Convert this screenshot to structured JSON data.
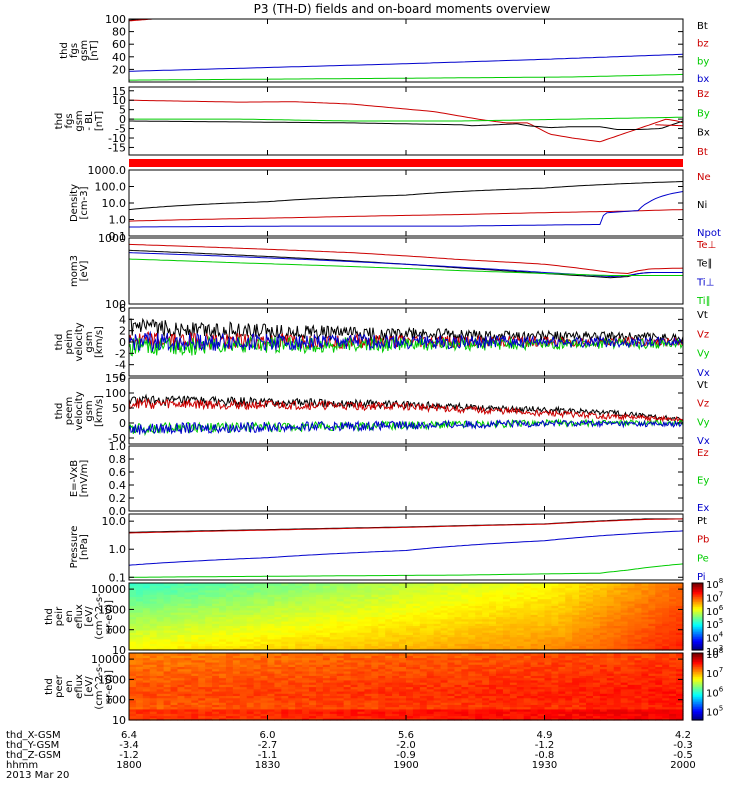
{
  "title": "P3 (TH-D) fields and on-board moments overview",
  "chart_data": [
    {
      "type": "line",
      "id": "fgs_mag",
      "ylabel": [
        "thd",
        "fgs",
        "gsm",
        "[nT]"
      ],
      "yticks": [
        "100",
        "80",
        "60",
        "40",
        "20"
      ],
      "ylim": [
        0,
        100
      ],
      "scale": "linear",
      "legend_placement": "right",
      "series": [
        {
          "name": "Bt",
          "color": "#000000",
          "x": [
            0,
            0.1
          ],
          "y": [
            98,
            105
          ]
        },
        {
          "name": "bz",
          "color": "#cc0000",
          "x": [
            0,
            0.1
          ],
          "y": [
            97,
            104
          ]
        },
        {
          "name": "by",
          "color": "#00cc00",
          "x": [
            0,
            0.5,
            0.8,
            1.0
          ],
          "y": [
            3,
            6,
            8,
            12
          ]
        },
        {
          "name": "bx",
          "color": "#0000cc",
          "x": [
            0,
            0.25,
            0.5,
            0.75,
            1.0
          ],
          "y": [
            17,
            23,
            29,
            36,
            44
          ]
        }
      ]
    },
    {
      "type": "line",
      "id": "fgs_comp",
      "ylabel": [
        "thd",
        "fgs",
        "gsm",
        "- BL",
        "[nT]"
      ],
      "yticks": [
        "15",
        "10",
        "5",
        "0",
        "-5",
        "-10",
        "-15"
      ],
      "ylim": [
        -19,
        17
      ],
      "scale": "linear",
      "legend_placement": "right",
      "series": [
        {
          "name": "Bz",
          "color": "#cc0000",
          "x": [
            0,
            0.1,
            0.2,
            0.3,
            0.4,
            0.55,
            0.63,
            0.68,
            0.72,
            0.76,
            0.8,
            0.85,
            0.9,
            0.95,
            0.97,
            0.99,
            1.0
          ],
          "y": [
            10,
            9.5,
            9,
            9.2,
            8,
            4,
            0,
            -2,
            -2,
            -8,
            -10,
            -12,
            -7,
            -2,
            0,
            -1,
            -2
          ]
        },
        {
          "name": "By",
          "color": "#00cc00",
          "x": [
            0,
            0.2,
            0.4,
            0.6,
            0.8,
            1.0
          ],
          "y": [
            0,
            0,
            -1,
            -1,
            0,
            1
          ]
        },
        {
          "name": "Bx",
          "color": "#000000",
          "x": [
            0,
            0.2,
            0.4,
            0.6,
            0.62,
            0.66,
            0.7,
            0.72,
            0.76,
            0.8,
            0.85,
            0.88,
            0.92,
            0.96,
            1.0
          ],
          "y": [
            -1,
            -1.5,
            -2,
            -3,
            -3.5,
            -3,
            -2.5,
            -3.5,
            -4.5,
            -4,
            -4,
            -5.5,
            -5.5,
            -5,
            -1
          ]
        },
        {
          "name": "Bt",
          "color": "#cc0000",
          "x": [
            0.95,
            1.0
          ],
          "y": [
            -3,
            -3.5
          ]
        }
      ]
    },
    {
      "type": "line",
      "id": "density",
      "ylabel": [
        "Density",
        "[cm-3]"
      ],
      "yticks": [
        "1000.0",
        "100.0",
        "10.0",
        "1.0",
        "0.1"
      ],
      "ylim": [
        0.1,
        1000
      ],
      "scale": "log",
      "legend_placement": "right",
      "series": [
        {
          "name": "Ne",
          "color": "#cc0000",
          "x": [
            0,
            0.3,
            0.6,
            0.9,
            1.0
          ],
          "y": [
            0.8,
            1.3,
            2.0,
            3.2,
            4.0
          ]
        },
        {
          "name": "Ni",
          "color": "#000000",
          "x": [
            0,
            0.25,
            0.5,
            0.75,
            1.0
          ],
          "y": [
            4,
            12,
            30,
            80,
            200
          ]
        },
        {
          "name": "Npot",
          "color": "#0000cc",
          "x": [
            0,
            0.3,
            0.6,
            0.85,
            0.86,
            0.92,
            0.94,
            1.0
          ],
          "y": [
            0.35,
            0.4,
            0.4,
            0.5,
            2.5,
            3.5,
            12,
            50
          ]
        }
      ]
    },
    {
      "type": "line",
      "id": "temperature",
      "ylabel": [
        "mom3",
        "[eV]"
      ],
      "yticks": [
        "1000",
        "100"
      ],
      "ylim": [
        100,
        1000
      ],
      "scale": "log",
      "legend_placement": "right",
      "series": [
        {
          "name": "Te⊥",
          "color": "#cc0000",
          "x": [
            0,
            0.2,
            0.4,
            0.6,
            0.75,
            0.87,
            0.9,
            0.92,
            0.94,
            1.0
          ],
          "y": [
            800,
            700,
            600,
            470,
            400,
            300,
            290,
            320,
            340,
            350
          ]
        },
        {
          "name": "Te∥",
          "color": "#000000",
          "x": [
            0,
            0.2,
            0.4,
            0.6,
            0.75,
            0.87,
            0.9,
            0.92,
            0.94,
            1.0
          ],
          "y": [
            650,
            550,
            450,
            350,
            290,
            250,
            260,
            290,
            300,
            300
          ]
        },
        {
          "name": "Ti⊥",
          "color": "#0000cc",
          "x": [
            0,
            0.2,
            0.4,
            0.6,
            0.75,
            0.87,
            0.9,
            0.92,
            0.94,
            1.0
          ],
          "y": [
            600,
            520,
            440,
            360,
            300,
            260,
            270,
            290,
            300,
            300
          ]
        },
        {
          "name": "Ti∥",
          "color": "#00cc00",
          "x": [
            0,
            0.2,
            0.4,
            0.6,
            0.75,
            0.87,
            1.0
          ],
          "y": [
            480,
            420,
            370,
            320,
            290,
            270,
            270
          ]
        }
      ]
    },
    {
      "type": "line",
      "id": "esa_velocity",
      "ylabel": [
        "thd",
        "peim",
        "velocity",
        "gsm",
        "[km/s]"
      ],
      "yticks": [
        "6",
        "4",
        "2",
        "0",
        "-2",
        "-4",
        "-6"
      ],
      "ylim": [
        -6,
        6
      ],
      "scale": "linear",
      "legend_placement": "right",
      "series": [
        {
          "name": "Vt",
          "color": "#000000",
          "x": [
            0,
            0.2,
            0.4,
            0.6,
            0.8,
            1.0
          ],
          "y": [
            2.5,
            2.0,
            1.5,
            1.2,
            1.0,
            0.8
          ]
        },
        {
          "name": "Vz",
          "color": "#cc0000",
          "x": [
            0,
            0.5,
            1.0
          ],
          "y": [
            0.2,
            0.1,
            0
          ]
        },
        {
          "name": "Vy",
          "color": "#00cc00",
          "x": [
            0,
            0.2,
            0.5,
            1.0
          ],
          "y": [
            -1.0,
            -0.6,
            -0.4,
            -0.3
          ]
        },
        {
          "name": "Vx",
          "color": "#0000cc",
          "x": [
            0,
            0.5,
            1.0
          ],
          "y": [
            0,
            0,
            0
          ]
        }
      ]
    },
    {
      "type": "line",
      "id": "esa_velocity2",
      "ylabel": [
        "thd",
        "peem",
        "velocity",
        "gsm",
        "[km/s]"
      ],
      "yticks": [
        "150",
        "100",
        "50",
        "0",
        "-50"
      ],
      "ylim": [
        -70,
        150
      ],
      "scale": "linear",
      "legend_placement": "right",
      "series": [
        {
          "name": "Vt",
          "color": "#000000",
          "x": [
            0,
            0.2,
            0.4,
            0.6,
            0.8,
            0.9,
            1.0
          ],
          "y": [
            75,
            70,
            65,
            55,
            40,
            30,
            10
          ]
        },
        {
          "name": "Vz",
          "color": "#cc0000",
          "x": [
            0,
            0.5,
            1.0
          ],
          "y": [
            65,
            55,
            10
          ]
        },
        {
          "name": "Vy",
          "color": "#00cc00",
          "x": [
            0,
            0.2,
            0.4,
            0.6,
            0.8,
            1.0
          ],
          "y": [
            -20,
            -15,
            -10,
            -5,
            0,
            0
          ]
        },
        {
          "name": "Vx",
          "color": "#0000cc",
          "x": [
            0,
            0.2,
            0.4,
            0.6,
            0.8,
            1.0
          ],
          "y": [
            -20,
            -15,
            -10,
            -5,
            0,
            -5
          ]
        }
      ]
    },
    {
      "type": "line",
      "id": "efield",
      "ylabel": [
        "E=-VxB",
        "[mV/m]"
      ],
      "yticks": [
        "1.0",
        "0.8",
        "0.6",
        "0.4",
        "0.2",
        "0.0"
      ],
      "ylim": [
        0,
        1
      ],
      "scale": "linear",
      "legend_placement": "right",
      "series": [
        {
          "name": "Ez",
          "color": "#cc0000",
          "x": [],
          "y": []
        },
        {
          "name": "Ey",
          "color": "#00cc00",
          "x": [],
          "y": []
        },
        {
          "name": "Ex",
          "color": "#0000cc",
          "x": [],
          "y": []
        }
      ]
    },
    {
      "type": "line",
      "id": "pressure",
      "ylabel": [
        "Pressure",
        "[nPa]"
      ],
      "yticks": [
        "10.0",
        "1.0",
        "0.1"
      ],
      "ylim": [
        0.08,
        18
      ],
      "scale": "log",
      "legend_placement": "right",
      "series": [
        {
          "name": "Pt",
          "color": "#000000",
          "x": [
            0,
            0.25,
            0.5,
            0.75,
            0.93,
            1.0
          ],
          "y": [
            4,
            5,
            6.2,
            8,
            12,
            12
          ]
        },
        {
          "name": "Pb",
          "color": "#cc0000",
          "x": [
            0,
            0.25,
            0.5,
            0.75,
            0.93,
            1.0
          ],
          "y": [
            3.8,
            4.8,
            6,
            7.8,
            11.5,
            12
          ]
        },
        {
          "name": "Pe",
          "color": "#00cc00",
          "x": [
            0,
            0.3,
            0.6,
            0.85,
            0.9,
            1.0
          ],
          "y": [
            0.1,
            0.11,
            0.12,
            0.14,
            0.18,
            0.3
          ]
        },
        {
          "name": "Pi",
          "color": "#0000cc",
          "x": [
            0,
            0.25,
            0.5,
            0.75,
            1.0
          ],
          "y": [
            0.27,
            0.5,
            0.9,
            2,
            4.5
          ]
        }
      ]
    },
    {
      "type": "heatmap",
      "id": "peir",
      "ylabel": [
        "thd",
        "peir",
        "en",
        "eflux",
        "[eV/",
        "(cm^2-s-",
        "sr-eV)]"
      ],
      "yticks": [
        "10000",
        "1000",
        "100",
        "10"
      ],
      "ylim": [
        10,
        20000
      ],
      "scale": "log",
      "colorbar_ticks": [
        "10^8",
        "10^7",
        "10^6",
        "10^5",
        "10^4",
        "10^3"
      ],
      "colorbar_range": [
        3,
        8
      ]
    },
    {
      "type": "heatmap",
      "id": "peer",
      "ylabel": [
        "thd",
        "peer",
        "en",
        "eflux",
        "[eV/",
        "(cm^2-s-",
        "sr-eV)]"
      ],
      "yticks": [
        "10000",
        "1000",
        "100",
        "10"
      ],
      "ylim": [
        10,
        20000
      ],
      "scale": "log",
      "colorbar_ticks": [
        "10^8",
        "10^7",
        "10^6",
        "10^5"
      ],
      "colorbar_range": [
        4.5,
        8
      ]
    }
  ],
  "xaxis": {
    "rows": [
      {
        "label": "thd_X-GSM",
        "values": [
          "6.4",
          "6.0",
          "5.6",
          "4.9",
          "4.2"
        ]
      },
      {
        "label": "thd_Y-GSM",
        "values": [
          "-3.4",
          "-2.7",
          "-2.0",
          "-1.2",
          "-0.3"
        ]
      },
      {
        "label": "thd_Z-GSM",
        "values": [
          "-1.2",
          "-1.1",
          "-0.9",
          "-0.8",
          "-0.5"
        ]
      },
      {
        "label": "hhmm",
        "values": [
          "1800",
          "1830",
          "1900",
          "1930",
          "2000"
        ]
      }
    ],
    "date": "2013 Mar 20"
  }
}
